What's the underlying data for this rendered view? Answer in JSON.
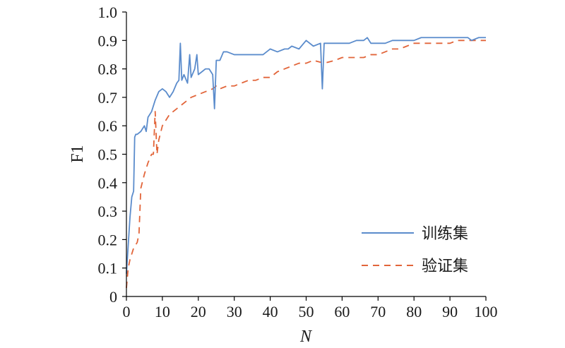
{
  "chart_data": {
    "type": "line",
    "xlabel": "N",
    "ylabel": "F1",
    "xlim": [
      0,
      100
    ],
    "ylim": [
      0,
      1.0
    ],
    "x_ticks": [
      "0",
      "10",
      "20",
      "30",
      "40",
      "50",
      "60",
      "70",
      "80",
      "90",
      "100"
    ],
    "y_ticks": [
      "0",
      "0.1",
      "0.2",
      "0.3",
      "0.4",
      "0.5",
      "0.6",
      "0.7",
      "0.8",
      "0.9",
      "1.0"
    ],
    "grid": false,
    "legend_position": "bottom-right",
    "colors": {
      "train": "#5b8ccc",
      "val": "#e2653a"
    },
    "series": [
      {
        "name": "训练集",
        "style": "solid",
        "x": [
          0,
          0.5,
          1,
          1.5,
          2,
          2.3,
          2.6,
          3,
          4,
          5,
          5.5,
          6,
          7,
          8,
          9,
          10,
          11,
          12,
          13,
          14,
          14.6,
          15,
          15.4,
          16,
          17,
          17.6,
          18,
          19,
          19.6,
          20,
          21,
          22,
          23,
          24,
          24.5,
          25,
          26,
          27,
          28,
          30,
          32,
          35,
          38,
          40,
          42,
          44,
          45,
          46,
          48,
          50,
          52,
          54,
          54.5,
          55,
          56,
          58,
          60,
          62,
          64,
          66,
          67,
          68,
          70,
          72,
          74,
          76,
          78,
          80,
          82,
          84,
          86,
          88,
          90,
          92,
          94,
          95,
          96,
          98,
          100
        ],
        "values": [
          0.08,
          0.18,
          0.28,
          0.35,
          0.37,
          0.56,
          0.57,
          0.57,
          0.58,
          0.6,
          0.58,
          0.63,
          0.65,
          0.69,
          0.72,
          0.73,
          0.72,
          0.7,
          0.72,
          0.75,
          0.76,
          0.89,
          0.76,
          0.78,
          0.75,
          0.85,
          0.77,
          0.8,
          0.85,
          0.78,
          0.79,
          0.8,
          0.8,
          0.78,
          0.66,
          0.83,
          0.83,
          0.86,
          0.86,
          0.85,
          0.85,
          0.85,
          0.85,
          0.87,
          0.86,
          0.87,
          0.87,
          0.88,
          0.87,
          0.9,
          0.88,
          0.89,
          0.73,
          0.89,
          0.89,
          0.89,
          0.89,
          0.89,
          0.9,
          0.9,
          0.91,
          0.89,
          0.89,
          0.89,
          0.9,
          0.9,
          0.9,
          0.9,
          0.91,
          0.91,
          0.91,
          0.91,
          0.91,
          0.91,
          0.91,
          0.91,
          0.9,
          0.91,
          0.91
        ]
      },
      {
        "name": "验证集",
        "style": "dashed",
        "x": [
          0,
          0.5,
          1,
          2,
          3,
          3.5,
          4,
          5,
          6,
          7,
          7.5,
          8,
          8.5,
          9,
          10,
          11,
          12,
          13,
          14,
          15,
          17,
          18,
          20,
          22,
          24,
          25,
          26,
          28,
          30,
          32,
          34,
          36,
          38,
          40,
          42,
          44,
          46,
          48,
          50,
          52,
          55,
          58,
          60,
          62,
          64,
          66,
          68,
          70,
          72,
          74,
          76,
          78,
          80,
          82,
          84,
          86,
          88,
          90,
          92,
          94,
          96,
          98,
          100
        ],
        "values": [
          0.03,
          0.1,
          0.13,
          0.17,
          0.19,
          0.22,
          0.38,
          0.43,
          0.47,
          0.5,
          0.5,
          0.65,
          0.5,
          0.55,
          0.6,
          0.62,
          0.64,
          0.65,
          0.66,
          0.67,
          0.69,
          0.7,
          0.71,
          0.72,
          0.73,
          0.74,
          0.73,
          0.74,
          0.74,
          0.75,
          0.76,
          0.76,
          0.77,
          0.77,
          0.79,
          0.8,
          0.81,
          0.82,
          0.82,
          0.83,
          0.82,
          0.83,
          0.84,
          0.84,
          0.84,
          0.84,
          0.85,
          0.85,
          0.86,
          0.87,
          0.87,
          0.88,
          0.89,
          0.89,
          0.89,
          0.89,
          0.89,
          0.89,
          0.9,
          0.9,
          0.9,
          0.9,
          0.9
        ]
      }
    ]
  }
}
